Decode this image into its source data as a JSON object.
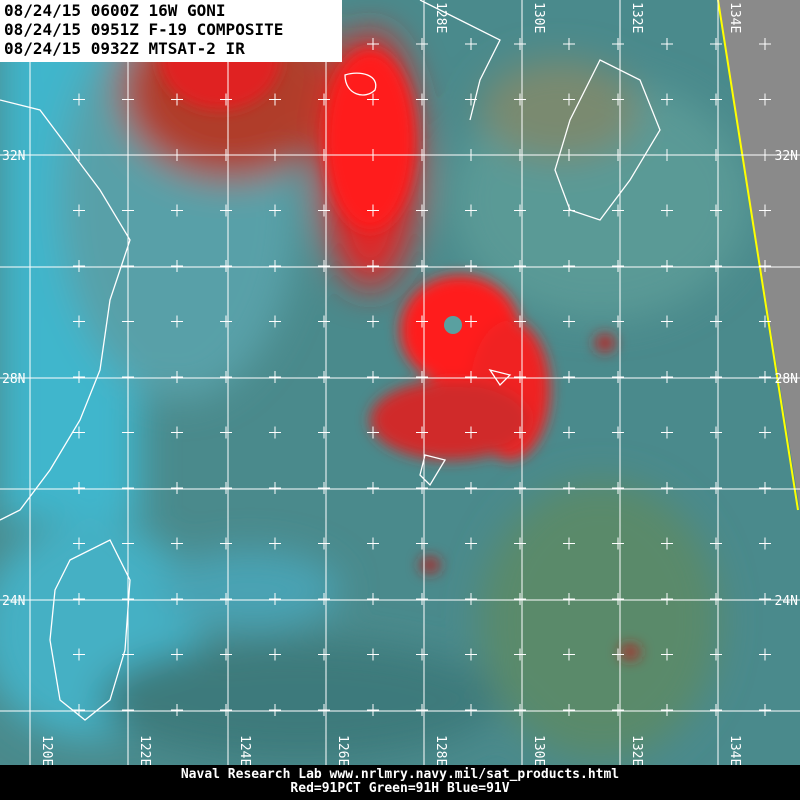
{
  "header": {
    "lines": [
      "08/24/15 0600Z 16W GONI",
      "08/24/15 0951Z F-19 COMPOSITE",
      "08/24/15 0932Z MTSAT-2 IR"
    ]
  },
  "map": {
    "lat_labels_left": [
      "32N",
      "28N",
      "24N"
    ],
    "lat_labels_right": [
      "32N",
      "28N",
      "24N"
    ],
    "lon_labels_top": [
      "128E",
      "130E",
      "132E",
      "134E"
    ],
    "lon_labels_bottom": [
      "120E",
      "122E",
      "124E",
      "126E",
      "128E",
      "130E",
      "132E",
      "134E"
    ]
  },
  "footer": {
    "lines": [
      "Naval Research Lab  www.nrlmry.navy.mil/sat_products.html",
      "Red=91PCT  Green=91H  Blue=91V"
    ]
  }
}
